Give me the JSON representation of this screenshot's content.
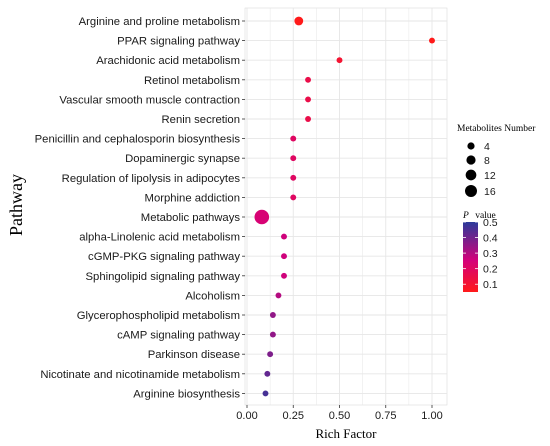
{
  "chart_data": {
    "type": "scatter",
    "xlabel": "Rich Factor",
    "ylabel": "Pathway",
    "xlim": [
      0,
      1.0
    ],
    "x_ticks": [
      "0.00",
      "0.25",
      "0.50",
      "0.75",
      "1.00"
    ],
    "x_tick_values": [
      0,
      0.25,
      0.5,
      0.75,
      1.0
    ],
    "grid": true,
    "categories": [
      "Arginine and proline metabolism",
      "PPAR signaling pathway",
      "Arachidonic acid metabolism",
      "Retinol metabolism",
      "Vascular smooth muscle contraction",
      "Renin secretion",
      "Penicillin and cephalosporin biosynthesis",
      "Dopaminergic synapse",
      "Regulation of lipolysis in adipocytes",
      "Morphine addiction",
      "Metabolic pathways",
      "alpha-Linolenic acid metabolism",
      "cGMP-PKG signaling pathway",
      "Sphingolipid signaling pathway",
      "Alcoholism",
      "Glycerophospholipid metabolism",
      "cAMP signaling pathway",
      "Parkinson disease",
      "Nicotinate and nicotinamide metabolism",
      "Arginine biosynthesis"
    ],
    "points": [
      {
        "pathway": "Arginine and proline metabolism",
        "rich_factor": 0.28,
        "metabolites_number": 4,
        "p_value": 0.02
      },
      {
        "pathway": "PPAR signaling pathway",
        "rich_factor": 1.0,
        "metabolites_number": 1,
        "p_value": 0.04
      },
      {
        "pathway": "Arachidonic acid metabolism",
        "rich_factor": 0.5,
        "metabolites_number": 1,
        "p_value": 0.1
      },
      {
        "pathway": "Retinol metabolism",
        "rich_factor": 0.33,
        "metabolites_number": 1,
        "p_value": 0.15
      },
      {
        "pathway": "Vascular smooth muscle contraction",
        "rich_factor": 0.33,
        "metabolites_number": 1,
        "p_value": 0.15
      },
      {
        "pathway": "Renin secretion",
        "rich_factor": 0.33,
        "metabolites_number": 1,
        "p_value": 0.15
      },
      {
        "pathway": "Penicillin and cephalosporin biosynthesis",
        "rich_factor": 0.25,
        "metabolites_number": 1,
        "p_value": 0.2
      },
      {
        "pathway": "Dopaminergic synapse",
        "rich_factor": 0.25,
        "metabolites_number": 1,
        "p_value": 0.2
      },
      {
        "pathway": "Regulation of lipolysis in adipocytes",
        "rich_factor": 0.25,
        "metabolites_number": 1,
        "p_value": 0.2
      },
      {
        "pathway": "Morphine addiction",
        "rich_factor": 0.25,
        "metabolites_number": 1,
        "p_value": 0.2
      },
      {
        "pathway": "Metabolic pathways",
        "rich_factor": 0.08,
        "metabolites_number": 16,
        "p_value": 0.24
      },
      {
        "pathway": "alpha-Linolenic acid metabolism",
        "rich_factor": 0.2,
        "metabolites_number": 1,
        "p_value": 0.26
      },
      {
        "pathway": "cGMP-PKG signaling pathway",
        "rich_factor": 0.2,
        "metabolites_number": 1,
        "p_value": 0.26
      },
      {
        "pathway": "Sphingolipid signaling pathway",
        "rich_factor": 0.2,
        "metabolites_number": 1,
        "p_value": 0.26
      },
      {
        "pathway": "Alcoholism",
        "rich_factor": 0.17,
        "metabolites_number": 1,
        "p_value": 0.3
      },
      {
        "pathway": "Glycerophospholipid metabolism",
        "rich_factor": 0.14,
        "metabolites_number": 1,
        "p_value": 0.35
      },
      {
        "pathway": "cAMP signaling pathway",
        "rich_factor": 0.14,
        "metabolites_number": 1,
        "p_value": 0.35
      },
      {
        "pathway": "Parkinson disease",
        "rich_factor": 0.125,
        "metabolites_number": 1,
        "p_value": 0.38
      },
      {
        "pathway": "Nicotinate and nicotinamide metabolism",
        "rich_factor": 0.11,
        "metabolites_number": 1,
        "p_value": 0.42
      },
      {
        "pathway": "Arginine biosynthesis",
        "rich_factor": 0.1,
        "metabolites_number": 1,
        "p_value": 0.46
      }
    ],
    "size_legend": {
      "title": "Metabolites Number",
      "values": [
        4,
        8,
        12,
        16
      ],
      "labels": [
        "4",
        "8",
        "12",
        "16"
      ]
    },
    "color_legend": {
      "title_italic": "P",
      "title_rest": "value",
      "range": [
        0.05,
        0.5
      ],
      "tick_values": [
        0.5,
        0.4,
        0.3,
        0.2,
        0.1
      ],
      "tick_labels": [
        "0.5",
        "0.4",
        "0.3",
        "0.2",
        "0.1"
      ],
      "color_low": "#ff1a1a",
      "color_mid": "#d4007a",
      "color_high": "#2b3a9a"
    },
    "panel_background": "#ffffff",
    "grid_color": "#e6e6e6",
    "legend_position": "right"
  }
}
